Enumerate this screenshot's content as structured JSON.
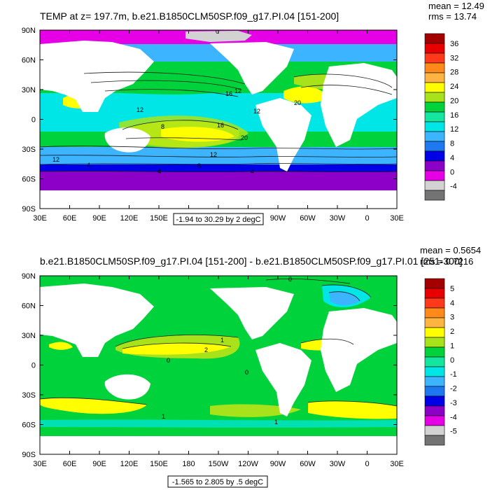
{
  "panels": [
    {
      "title": "TEMP at z= 197.7m, b.e21.B1850CLM50SP.f09_g17.PI.04 [151-200]",
      "stats": {
        "mean": "mean = 12.49",
        "rms": "rms = 13.74"
      },
      "range_note": "-1.94 to 30.29 by 2 degC",
      "contour_labels": [
        "0",
        "12",
        "16",
        "20",
        "12",
        "12",
        "12",
        "4",
        "4",
        "4",
        "20",
        "16",
        "12",
        "8",
        "8"
      ],
      "colorbar": {
        "labels": [
          "36",
          "32",
          "28",
          "24",
          "20",
          "16",
          "12",
          "8",
          "4",
          "0",
          "-4"
        ],
        "colors": [
          "#a50000",
          "#e80000",
          "#ff3a1a",
          "#ff8a1a",
          "#ffb340",
          "#ffff00",
          "#a8e21a",
          "#00d23c",
          "#14e6a0",
          "#00e6e6",
          "#3cb4ff",
          "#1e78f0",
          "#0000e6",
          "#8c00c8",
          "#e600e6",
          "#d2d2d2",
          "#737373"
        ]
      }
    },
    {
      "title": "b.e21.B1850CLM50SP.f09_g17.PI.04 [151-200] - b.e21.B1850CLM50SP.f09_g17.PI.01 [251-300]",
      "stats": {
        "mean": "mean = 0.5654",
        "rms": "rms = 0.7216"
      },
      "range_note": "-1.565 to 2.805 by .5 degC",
      "contour_labels": [
        "0",
        "1",
        "2",
        "0",
        "0",
        "1",
        "1"
      ],
      "colorbar": {
        "labels": [
          "5",
          "4",
          "3",
          "2",
          "1",
          "0",
          "-1",
          "-2",
          "-3",
          "-4",
          "-5"
        ],
        "colors": [
          "#a50000",
          "#e80000",
          "#ff3a1a",
          "#ff8a1a",
          "#ffb340",
          "#ffff00",
          "#a8e21a",
          "#00d23c",
          "#14e6a0",
          "#00e6e6",
          "#3cb4ff",
          "#1e78f0",
          "#0000e6",
          "#8c00c8",
          "#e600e6",
          "#d2d2d2",
          "#737373"
        ]
      }
    }
  ],
  "axes": {
    "lon_ticks": [
      "30E",
      "60E",
      "90E",
      "120E",
      "150E",
      "180",
      "150W",
      "120W",
      "90W",
      "60W",
      "30W",
      "0",
      "30E"
    ],
    "lat_ticks": [
      "90N",
      "60N",
      "30N",
      "0",
      "30S",
      "60S",
      "90S"
    ]
  },
  "colors": {
    "land": "#ffffff",
    "axis": "#000000",
    "contour": "#1a1a1a"
  }
}
